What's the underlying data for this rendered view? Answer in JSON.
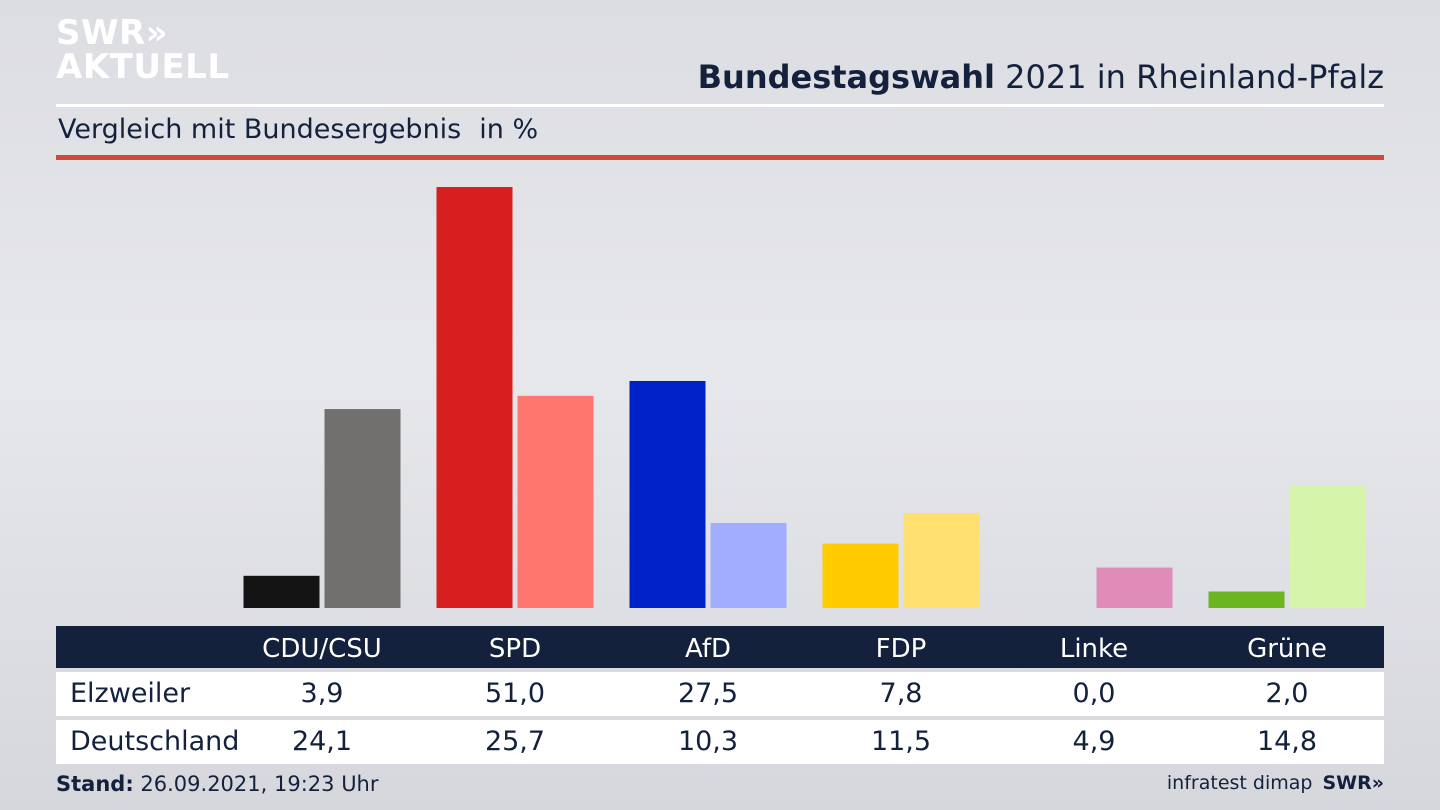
{
  "header": {
    "logo_line1": "SWR»",
    "logo_line2": "AKTUELL",
    "title_bold": "Bundestagswahl",
    "title_rest": "2021 in Rheinland-Pfalz",
    "subtitle": "Vergleich mit Bundesergebnis",
    "unit": "in %"
  },
  "colors": {
    "header_bar": "#14213d",
    "accent_rule": "#d2483a"
  },
  "chart_data": {
    "type": "bar",
    "categories": [
      "CDU/CSU",
      "SPD",
      "AfD",
      "FDP",
      "Linke",
      "Grüne"
    ],
    "series": [
      {
        "name": "Elzweiler",
        "values": [
          3.9,
          51.0,
          27.5,
          7.8,
          0.0,
          2.0
        ],
        "colors": [
          "#141414",
          "#d71f1f",
          "#0021c8",
          "#ffcc00",
          "#c23f8f",
          "#6bb521"
        ]
      },
      {
        "name": "Deutschland",
        "values": [
          24.1,
          25.7,
          10.3,
          11.5,
          4.9,
          14.8
        ],
        "colors": [
          "#72706e",
          "#ff766f",
          "#a1aeff",
          "#ffe071",
          "#e08cb9",
          "#d6f5ab"
        ]
      }
    ],
    "value_labels": {
      "Elzweiler": [
        "3,9",
        "51,0",
        "27,5",
        "7,8",
        "0,0",
        "2,0"
      ],
      "Deutschland": [
        "24,1",
        "25,7",
        "10,3",
        "11,5",
        "4,9",
        "14,8"
      ]
    },
    "ylim": [
      0,
      51.0
    ],
    "grid": false,
    "legend": "none"
  },
  "footer": {
    "stand_label": "Stand:",
    "stand_value": "26.09.2021, 19:23 Uhr",
    "source": "infratest dimap",
    "brand": "SWR»"
  }
}
